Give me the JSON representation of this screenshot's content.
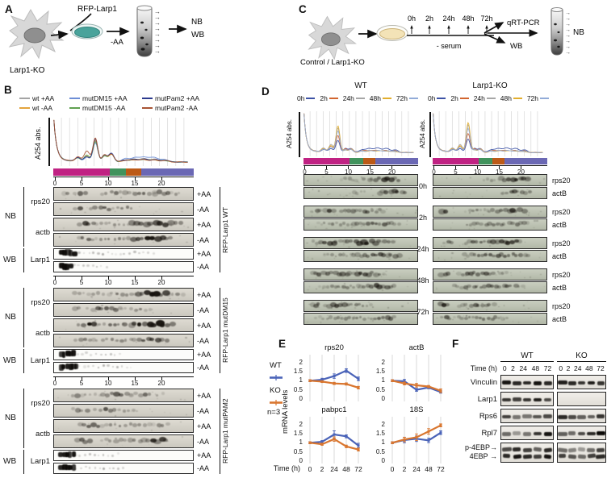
{
  "panels": {
    "A": {
      "label": "A",
      "construct_label": "RFP-Larp1",
      "cell_label": "Larp1-KO",
      "treatment_label": "-AA",
      "outputs": [
        "NB",
        "WB"
      ]
    },
    "B": {
      "label": "B",
      "legend": [
        {
          "name": "wt +AA",
          "color": "#a4a4a4"
        },
        {
          "name": "mutDM15 +AA",
          "color": "#6d8ed6"
        },
        {
          "name": "mutPam2 +AA",
          "color": "#2c3a8e"
        },
        {
          "name": "wt  -AA",
          "color": "#e3a43c"
        },
        {
          "name": "mutDM15  -AA",
          "color": "#5fa050"
        },
        {
          "name": "mutPam2  -AA",
          "color": "#a85434"
        }
      ],
      "y_axis_label": "A254 abs.",
      "x_ticks": [
        "0",
        "5",
        "10",
        "15",
        "20"
      ],
      "fraction_bar_colors": [
        "#c02283",
        "#41935d",
        "#bc5a17",
        "#6b68b4"
      ],
      "blot_groups": [
        "NB",
        "WB"
      ],
      "nb_probes": [
        "rps20",
        "actb"
      ],
      "wb_probe": "Larp1",
      "conditions": [
        "+AA",
        "-AA"
      ],
      "blocks": [
        {
          "side_label": "RFP-Larp1 WT"
        },
        {
          "side_label": "RFP-Larp1 mutDM15"
        },
        {
          "side_label": "RFP-Larp1 mutPAM2"
        }
      ]
    },
    "C": {
      "label": "C",
      "cell_label": "Control / Larp1-KO",
      "timepoints": [
        "0h",
        "2h",
        "24h",
        "48h",
        "72h"
      ],
      "treatment_label": "- serum",
      "outputs": [
        "qRT-PCR",
        "WB",
        "NB"
      ]
    },
    "D": {
      "label": "D",
      "columns": [
        "WT",
        "Larp1-KO"
      ],
      "legend": [
        {
          "name": "0h",
          "color": "#3c52a5"
        },
        {
          "name": "2h",
          "color": "#d2652f"
        },
        {
          "name": "24h",
          "color": "#a6a6a6"
        },
        {
          "name": "48h",
          "color": "#e2ae2e"
        },
        {
          "name": "72h",
          "color": "#92abd8"
        }
      ],
      "y_axis_label": "A254 abs.",
      "x_ticks": [
        "0",
        "5",
        "10",
        "15",
        "20"
      ],
      "time_blocks": [
        "0h",
        "2h",
        "24h",
        "48h",
        "72h"
      ],
      "probes": [
        "rps20",
        "actB"
      ]
    },
    "E": {
      "label": "E",
      "legend": [
        {
          "name": "WT",
          "color": "#4a63b8"
        },
        {
          "name": "KO",
          "color": "#d9762f"
        }
      ],
      "n_label": "n=3",
      "y_axis_label": "mRNA levels",
      "x_axis_label": "Time (h)",
      "chart_data": [
        {
          "type": "line",
          "title": "rps20",
          "x": [
            "0",
            "2",
            "24",
            "48",
            "72"
          ],
          "ylim": [
            0,
            2
          ],
          "y_ticks": [
            "2",
            "1.5",
            "1",
            "0.5",
            "0"
          ],
          "series": [
            {
              "name": "WT",
              "color": "#4a63b8",
              "values": [
                1,
                1.05,
                1.25,
                1.55,
                1.1
              ],
              "errors": [
                0.05,
                0.08,
                0.12,
                0.1,
                0.1
              ]
            },
            {
              "name": "KO",
              "color": "#d9762f",
              "values": [
                1,
                0.95,
                0.85,
                0.82,
                0.62
              ],
              "errors": [
                0.05,
                0.05,
                0.06,
                0.06,
                0.07
              ]
            }
          ]
        },
        {
          "type": "line",
          "title": "actB",
          "x": [
            "0",
            "2",
            "24",
            "48",
            "72"
          ],
          "ylim": [
            0,
            2
          ],
          "y_ticks": [
            "2",
            "1.5",
            "1",
            "0.5",
            "0"
          ],
          "series": [
            {
              "name": "WT",
              "color": "#4a63b8",
              "values": [
                1,
                0.97,
                0.5,
                0.63,
                0.38
              ],
              "errors": [
                0.05,
                0.1,
                0.08,
                0.07,
                0.06
              ]
            },
            {
              "name": "KO",
              "color": "#d9762f",
              "values": [
                1,
                0.85,
                0.75,
                0.68,
                0.45
              ],
              "errors": [
                0.05,
                0.08,
                0.1,
                0.06,
                0.1
              ]
            }
          ]
        },
        {
          "type": "line",
          "title": "pabpc1",
          "x": [
            "0",
            "2",
            "24",
            "48",
            "72"
          ],
          "ylim": [
            0,
            2
          ],
          "y_ticks": [
            "2",
            "1.5",
            "1",
            "0.5",
            "0"
          ],
          "series": [
            {
              "name": "WT",
              "color": "#4a63b8",
              "values": [
                1,
                1.05,
                1.45,
                1.35,
                0.85
              ],
              "errors": [
                0.05,
                0.07,
                0.2,
                0.08,
                0.12
              ]
            },
            {
              "name": "KO",
              "color": "#d9762f",
              "values": [
                1,
                0.92,
                1.2,
                0.8,
                0.63
              ],
              "errors": [
                0.05,
                0.06,
                0.12,
                0.07,
                0.08
              ]
            }
          ]
        },
        {
          "type": "line",
          "title": "18S",
          "x": [
            "0",
            "2",
            "24",
            "48",
            "72"
          ],
          "ylim": [
            0,
            2
          ],
          "y_ticks": [
            "2",
            "1.5",
            "1",
            "0.5",
            "0"
          ],
          "series": [
            {
              "name": "WT",
              "color": "#4a63b8",
              "values": [
                1,
                1.15,
                1.22,
                1.13,
                1.55
              ],
              "errors": [
                0.05,
                0.15,
                0.15,
                0.12,
                0.1
              ]
            },
            {
              "name": "KO",
              "color": "#d9762f",
              "values": [
                1,
                1.18,
                1.3,
                1.62,
                1.95
              ],
              "errors": [
                0.05,
                0.12,
                0.18,
                0.15,
                0.08
              ]
            }
          ]
        }
      ]
    },
    "F": {
      "label": "F",
      "columns": [
        "WT",
        "KO"
      ],
      "time_label": "Time (h)",
      "timepoints": [
        "0",
        "2",
        "24",
        "48",
        "72"
      ],
      "rows": [
        "Vinculin",
        "Larp1",
        "Rps6",
        "Rpl7"
      ],
      "dual_row": [
        "p-4EBP→",
        "4EBP →"
      ]
    }
  }
}
